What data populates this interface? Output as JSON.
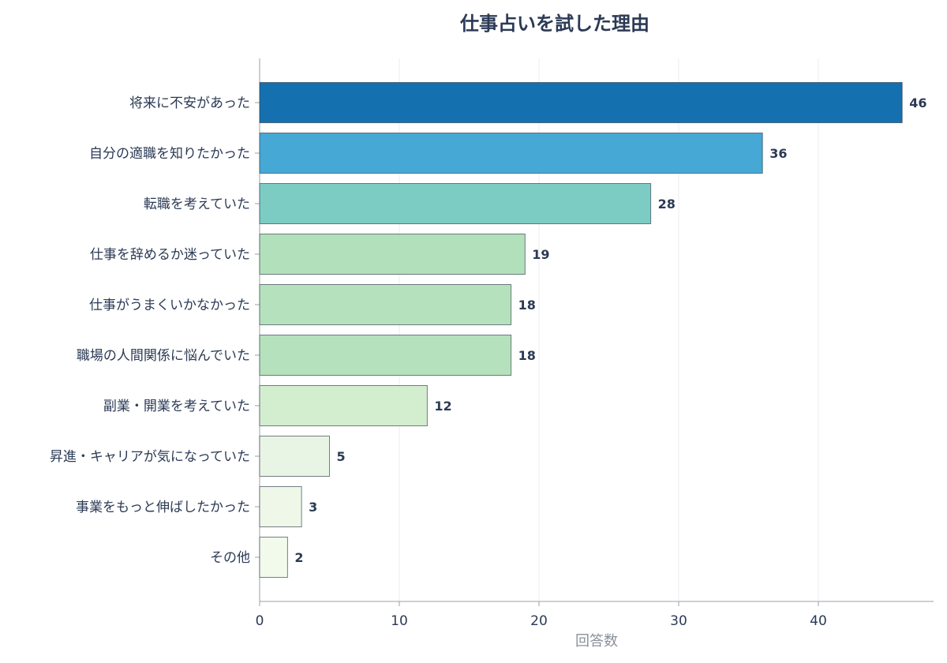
{
  "chart_data": {
    "type": "bar",
    "orientation": "horizontal",
    "title": "仕事占いを試した理由",
    "xlabel": "回答数",
    "ylabel": "",
    "xlim": [
      0,
      48
    ],
    "xticks": [
      0,
      10,
      20,
      30,
      40
    ],
    "grid": true,
    "categories": [
      "将来に不安があった",
      "自分の適職を知りたかった",
      "転職を考えていた",
      "仕事を辞めるか迷っていた",
      "仕事がうまくいかなかった",
      "職場の人間関係に悩んでいた",
      "副業・開業を考えていた",
      "昇進・キャリアが気になっていた",
      "事業をもっと伸ばしたかった",
      "その他"
    ],
    "values": [
      46,
      36,
      28,
      19,
      18,
      18,
      12,
      5,
      3,
      2
    ],
    "colors": [
      "#1570b0",
      "#46a8d4",
      "#7cccc4",
      "#b2e0ba",
      "#b5e2bc",
      "#b5e2bc",
      "#d3edcf",
      "#e8f5e4",
      "#eef7e8",
      "#f1faeb"
    ]
  }
}
